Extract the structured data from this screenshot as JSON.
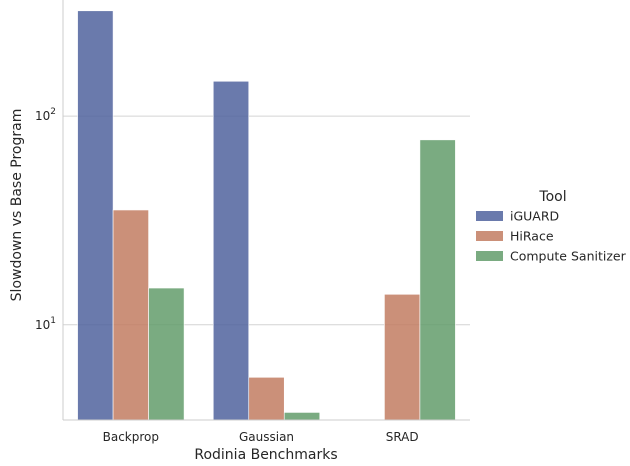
{
  "chart_data": {
    "type": "bar",
    "title": "",
    "xlabel": "Rodinia Benchmarks",
    "ylabel": "Slowdown vs Base Program",
    "yscale": "log",
    "ylim": [
      3.2,
      330
    ],
    "y_ticks": [
      {
        "value": 10,
        "base": "10",
        "exp": "1"
      },
      {
        "value": 100,
        "base": "10",
        "exp": "2"
      }
    ],
    "grid": "horizontal",
    "categories": [
      "Backprop",
      "Gaussian",
      "SRAD"
    ],
    "series": [
      {
        "name": "iGUARD",
        "color": "#4c5f9b",
        "values": [
          320,
          147,
          null
        ]
      },
      {
        "name": "HiRace",
        "color": "#c07a5e",
        "values": [
          35.5,
          5.6,
          14
        ]
      },
      {
        "name": "Compute Sanitizer",
        "color": "#5f9a68",
        "values": [
          15,
          3.8,
          77
        ]
      }
    ],
    "legend": {
      "title": "Tool",
      "position": "right"
    }
  }
}
